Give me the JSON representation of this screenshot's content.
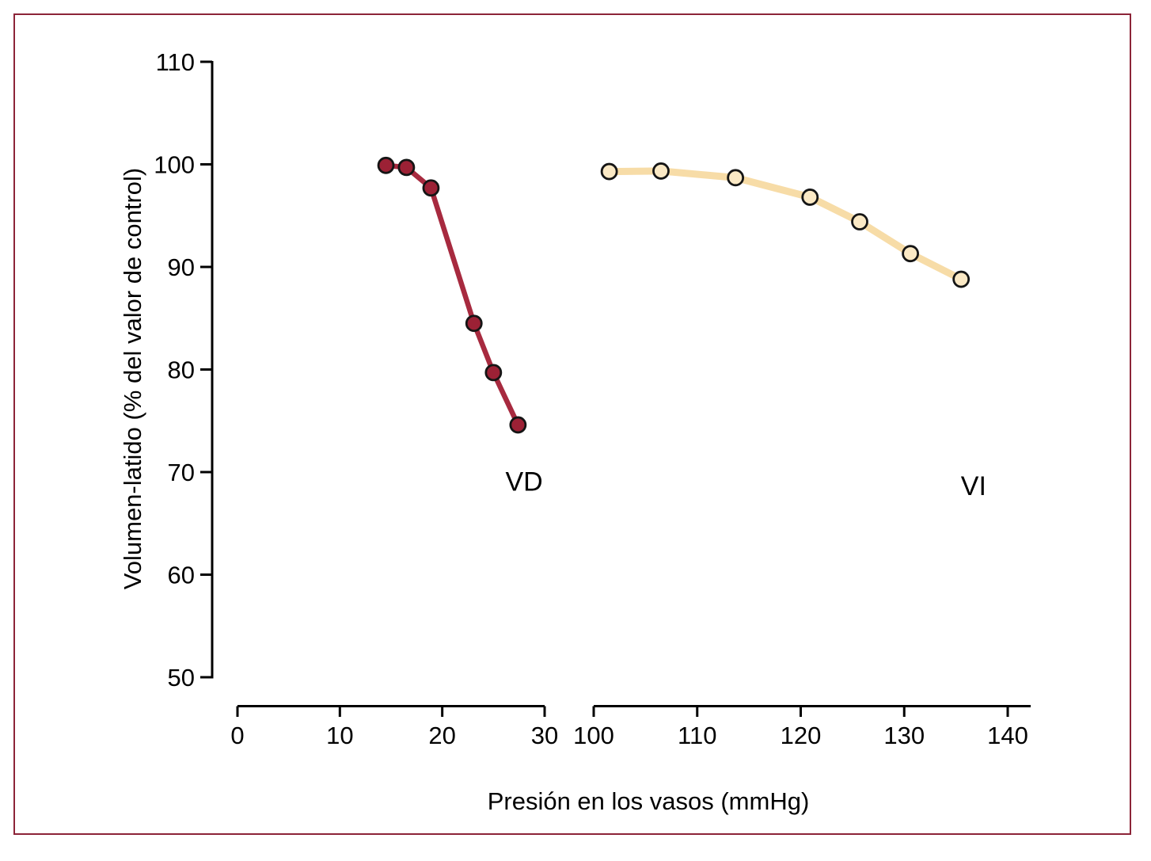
{
  "figure": {
    "border_color": "#8C2438",
    "background_color": "#FFFFFF"
  },
  "chart_data": {
    "type": "line",
    "title": "",
    "xlabel": "Presión en los vasos (mmHg)",
    "ylabel": "Volumen-latido (% del valor de control)",
    "ylim": [
      50,
      110
    ],
    "y_ticks": [
      50,
      60,
      70,
      80,
      90,
      100,
      110
    ],
    "grid": false,
    "legend_position": "none",
    "x_axis_break": true,
    "x_segments": [
      {
        "ticks": [
          0,
          10,
          20,
          30
        ],
        "range": [
          0,
          30
        ]
      },
      {
        "ticks": [
          100,
          110,
          120,
          130,
          140
        ],
        "range": [
          100,
          142
        ]
      }
    ],
    "series": [
      {
        "name": "VD",
        "label": "VD",
        "segment": 0,
        "x": [
          14.5,
          16.5,
          18.9,
          23.1,
          25.0,
          27.4
        ],
        "y": [
          99.9,
          99.7,
          97.7,
          84.5,
          79.7,
          74.6
        ],
        "line_color": "#A72A3F",
        "marker_color": "#9C2135",
        "marker_outline": "#151515",
        "line_width": 6.5,
        "label_at": {
          "x": 28.0,
          "y": 69.1
        }
      },
      {
        "name": "VI",
        "label": "VI",
        "segment": 1,
        "x": [
          101.5,
          106.5,
          113.7,
          120.9,
          125.7,
          130.6,
          135.5
        ],
        "y": [
          99.3,
          99.35,
          98.7,
          96.8,
          94.4,
          91.3,
          88.8
        ],
        "line_color": "#F7DCA7",
        "marker_color": "#FBE9C5",
        "marker_outline": "#151515",
        "line_width": 9,
        "label_at": {
          "x": 136.7,
          "y": 68.7
        }
      }
    ]
  }
}
